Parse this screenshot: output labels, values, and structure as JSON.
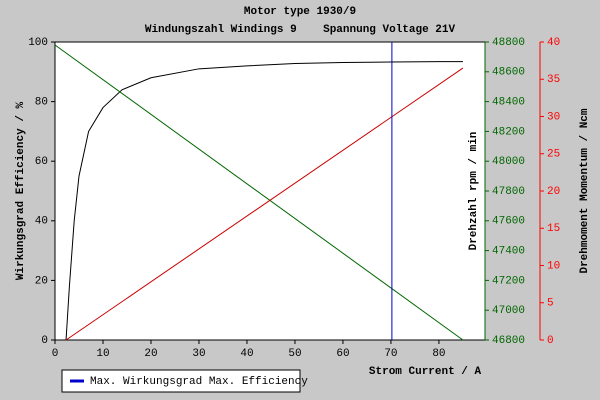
{
  "chart_data": {
    "type": "line",
    "title": "Motor type 1930/9",
    "subtitle": "Windungszahl Windings 9    Spannung Voltage 21V",
    "x_label": "Strom Current / A",
    "y_label": "Wirkungsgrad Efficiency / %",
    "y2_label": "Drehzahl rpm / min",
    "y3_label": "Drehmoment Momentum / Ncm",
    "xlim": [
      0,
      89.6
    ],
    "xticks": [
      0,
      10,
      20,
      30,
      40,
      50,
      60,
      70,
      80
    ],
    "ylim": [
      0,
      100
    ],
    "yticks": [
      0,
      20,
      40,
      60,
      80,
      100
    ],
    "y2lim": [
      46800,
      48800
    ],
    "y2ticks": [
      46800,
      47000,
      47200,
      47400,
      47600,
      47800,
      48000,
      48200,
      48400,
      48600,
      48800
    ],
    "y2color": "#006600",
    "y3lim": [
      0,
      40
    ],
    "y3ticks": [
      0,
      5,
      10,
      15,
      20,
      25,
      30,
      35,
      40
    ],
    "y3color": "#ff0000",
    "series": [
      {
        "color": "#000000",
        "axis": "y",
        "x": [
          2.3,
          3,
          4,
          5,
          7,
          10,
          14,
          20,
          30,
          40,
          50,
          60,
          70,
          80,
          85
        ],
        "values": [
          0,
          18,
          40,
          55,
          70,
          78,
          84,
          88,
          91,
          92,
          92.8,
          93.1,
          93.3,
          93.4,
          93.4
        ]
      },
      {
        "color": "#006600",
        "axis": "y2",
        "x": [
          0,
          85
        ],
        "values": [
          48780,
          46800
        ]
      },
      {
        "color": "#cc0000",
        "axis": "y3",
        "x": [
          2.3,
          85
        ],
        "values": [
          0,
          36.5
        ]
      }
    ],
    "vline": {
      "x": 70.2,
      "color": "#0000cc",
      "label": "Max. Wirkungsgrad Max. Efficiency"
    },
    "grid": false
  }
}
